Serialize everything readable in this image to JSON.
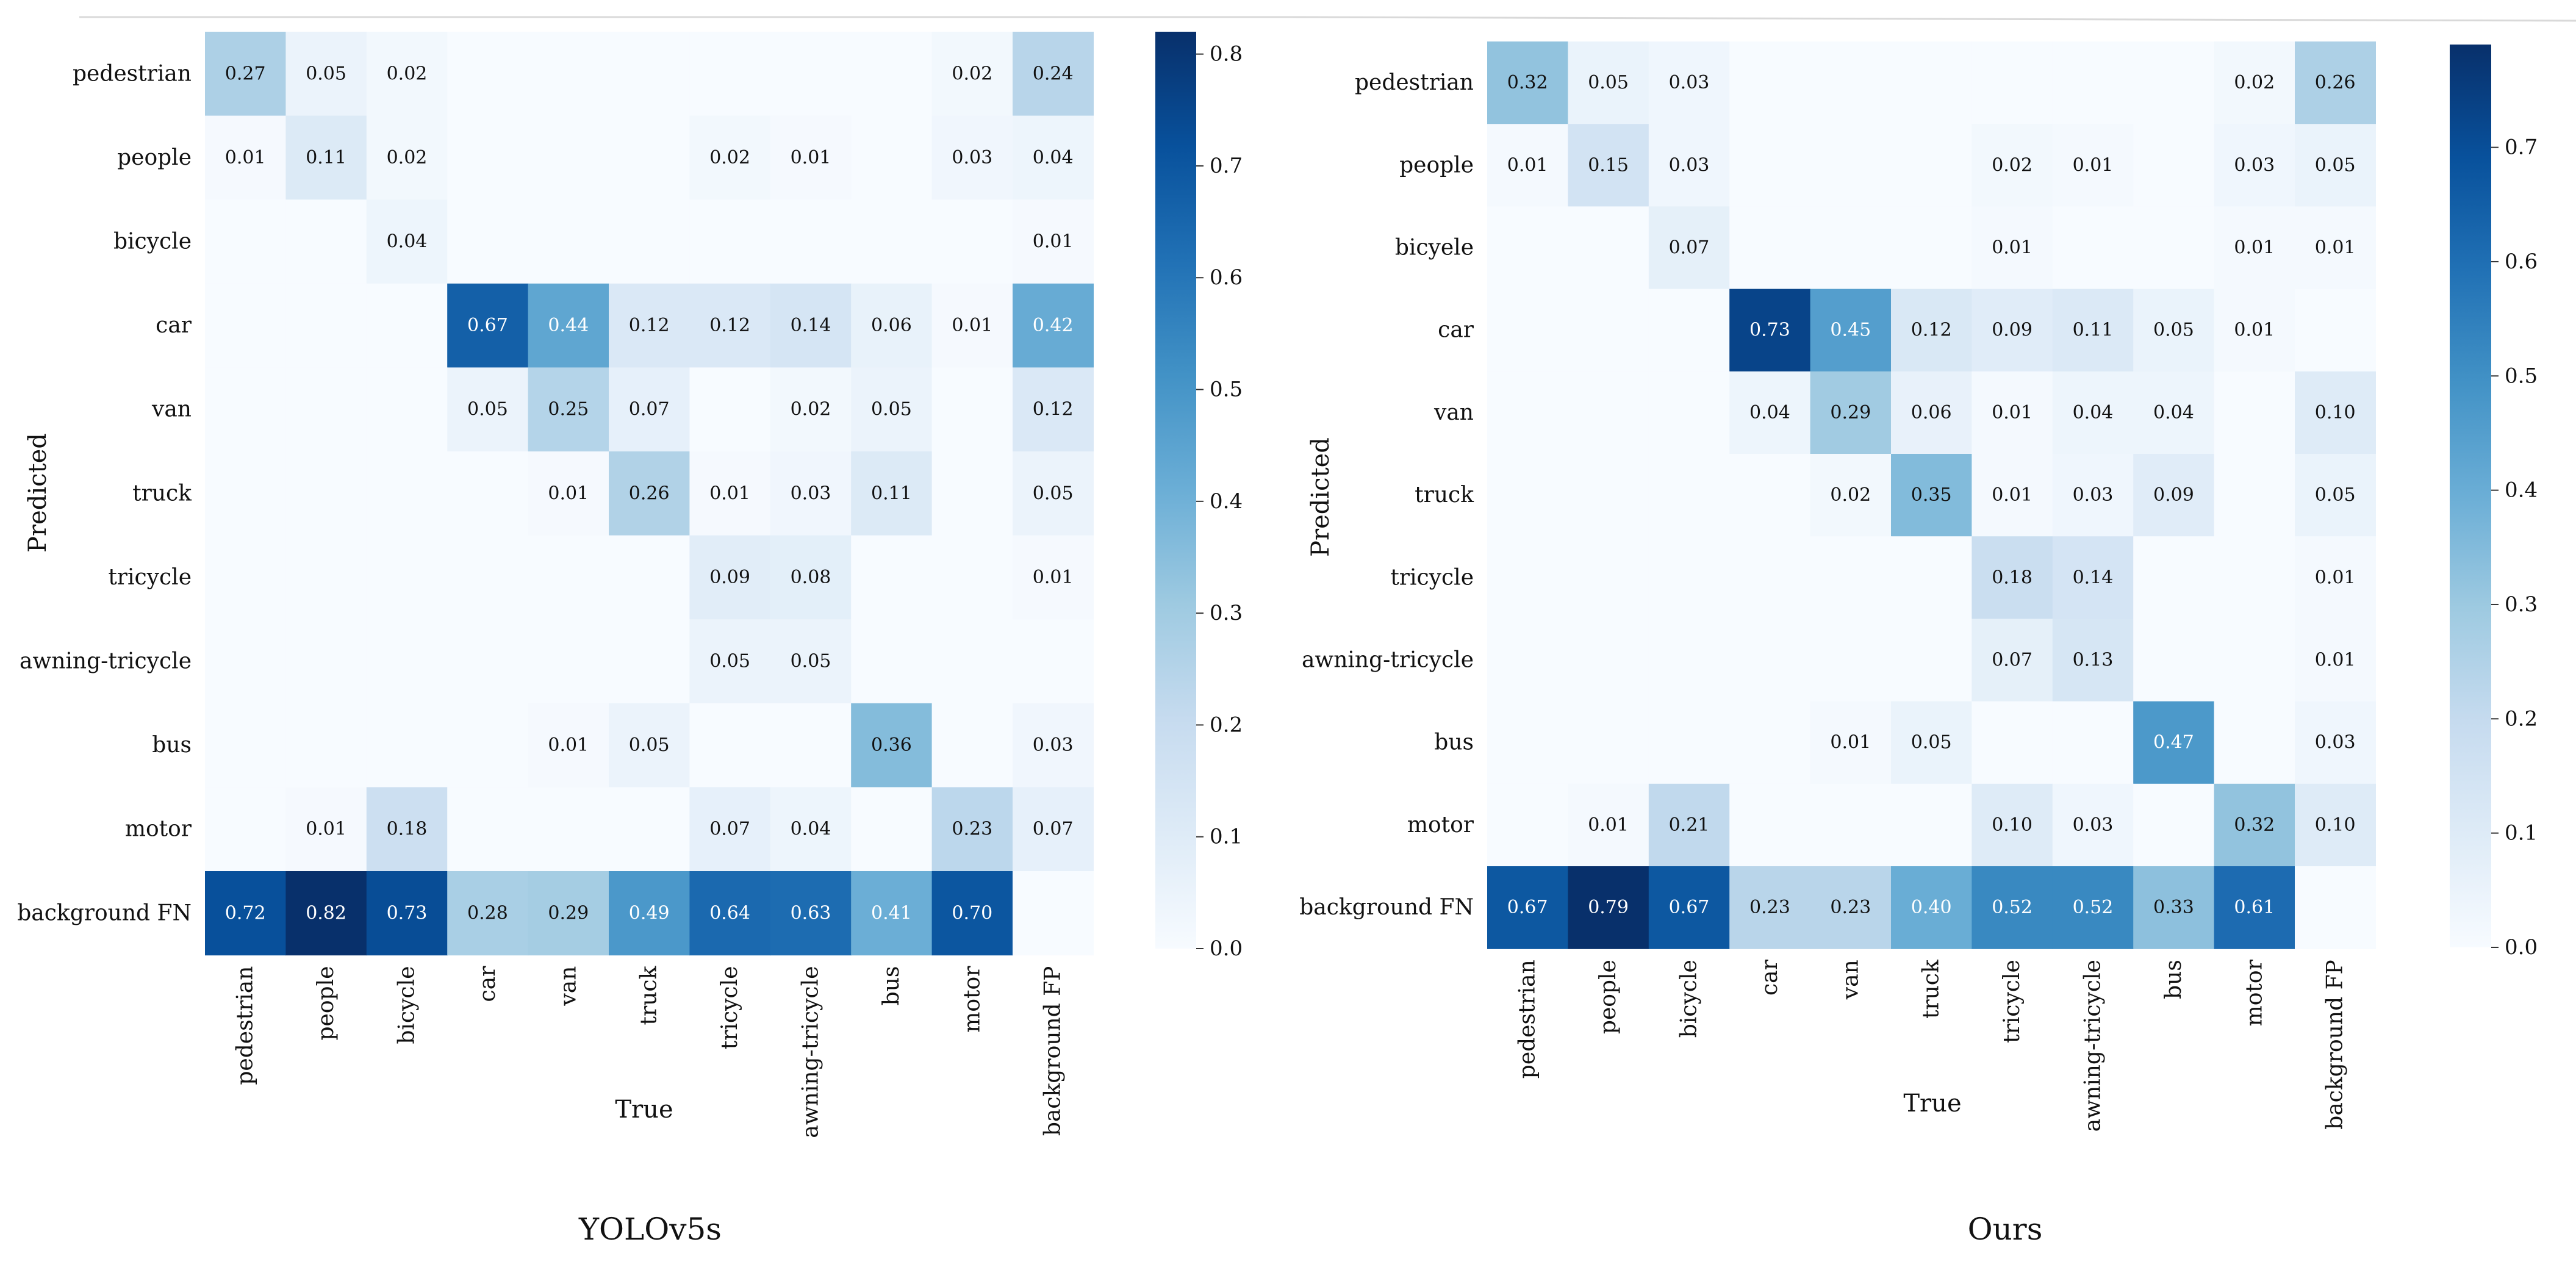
{
  "chart_data": [
    {
      "type": "heatmap",
      "title": "YOLOv5s",
      "xlabel": "True",
      "ylabel": "Predicted",
      "x_labels": [
        "pedestrian",
        "people",
        "bicycle",
        "car",
        "van",
        "truck",
        "tricycle",
        "awning-tricycle",
        "bus",
        "motor",
        "background FP"
      ],
      "y_labels": [
        "pedestrian",
        "people",
        "bicycle",
        "car",
        "van",
        "truck",
        "tricycle",
        "awning-tricycle",
        "bus",
        "motor",
        "background FN"
      ],
      "values": [
        [
          0.27,
          0.05,
          0.02,
          null,
          null,
          null,
          null,
          null,
          null,
          0.02,
          0.24
        ],
        [
          0.01,
          0.11,
          0.02,
          null,
          null,
          null,
          0.02,
          0.01,
          null,
          0.03,
          0.04
        ],
        [
          null,
          null,
          0.04,
          null,
          null,
          null,
          null,
          null,
          null,
          null,
          0.01
        ],
        [
          null,
          null,
          null,
          0.67,
          0.44,
          0.12,
          0.12,
          0.14,
          0.06,
          0.01,
          0.42
        ],
        [
          null,
          null,
          null,
          0.05,
          0.25,
          0.07,
          null,
          0.02,
          0.05,
          null,
          0.12
        ],
        [
          null,
          null,
          null,
          null,
          0.01,
          0.26,
          0.01,
          0.03,
          0.11,
          null,
          0.05
        ],
        [
          null,
          null,
          null,
          null,
          null,
          null,
          0.09,
          0.08,
          null,
          null,
          0.01
        ],
        [
          null,
          null,
          null,
          null,
          null,
          null,
          0.05,
          0.05,
          null,
          null,
          null
        ],
        [
          null,
          null,
          null,
          null,
          0.01,
          0.05,
          null,
          null,
          0.36,
          null,
          0.03
        ],
        [
          null,
          0.01,
          0.18,
          null,
          null,
          null,
          0.07,
          0.04,
          null,
          0.23,
          0.07
        ],
        [
          0.72,
          0.82,
          0.73,
          0.28,
          0.29,
          0.49,
          0.64,
          0.63,
          0.41,
          0.7,
          null
        ]
      ],
      "colorbar": {
        "min": 0.0,
        "max": 0.82,
        "ticks": [
          "0.0",
          "0.1",
          "0.2",
          "0.3",
          "0.4",
          "0.5",
          "0.6",
          "0.7",
          "0.8"
        ]
      }
    },
    {
      "type": "heatmap",
      "title": "Ours",
      "xlabel": "True",
      "ylabel": "Predicted",
      "x_labels": [
        "pedestrian",
        "people",
        "bicycle",
        "car",
        "van",
        "truck",
        "tricycle",
        "awning-tricycle",
        "bus",
        "motor",
        "background FP"
      ],
      "y_labels": [
        "pedestrian",
        "people",
        "bicyele",
        "car",
        "van",
        "truck",
        "tricycle",
        "awning-tricycle",
        "bus",
        "motor",
        "background FN"
      ],
      "values": [
        [
          0.32,
          0.05,
          0.03,
          null,
          null,
          null,
          null,
          null,
          null,
          0.02,
          0.26
        ],
        [
          0.01,
          0.15,
          0.03,
          null,
          null,
          null,
          0.02,
          0.01,
          null,
          0.03,
          0.05
        ],
        [
          null,
          null,
          0.07,
          null,
          null,
          null,
          0.01,
          null,
          null,
          0.01,
          0.01
        ],
        [
          null,
          null,
          null,
          0.73,
          0.45,
          0.12,
          0.09,
          0.11,
          0.05,
          0.01,
          null
        ],
        [
          null,
          null,
          null,
          0.04,
          0.29,
          0.06,
          0.01,
          0.04,
          0.04,
          null,
          0.1
        ],
        [
          null,
          null,
          null,
          null,
          0.02,
          0.35,
          0.01,
          0.03,
          0.09,
          null,
          0.05
        ],
        [
          null,
          null,
          null,
          null,
          null,
          null,
          0.18,
          0.14,
          null,
          null,
          0.01
        ],
        [
          null,
          null,
          null,
          null,
          null,
          null,
          0.07,
          0.13,
          null,
          null,
          0.01
        ],
        [
          null,
          null,
          null,
          null,
          0.01,
          0.05,
          null,
          null,
          0.47,
          null,
          0.03
        ],
        [
          null,
          0.01,
          0.21,
          null,
          null,
          null,
          0.1,
          0.03,
          null,
          0.32,
          0.1
        ],
        [
          0.67,
          0.79,
          0.67,
          0.23,
          0.23,
          0.4,
          0.52,
          0.52,
          0.33,
          0.61,
          null
        ]
      ],
      "colorbar": {
        "min": 0.0,
        "max": 0.79,
        "ticks": [
          "0.0",
          "0.1",
          "0.2",
          "0.3",
          "0.4",
          "0.5",
          "0.6",
          "0.7"
        ]
      }
    }
  ],
  "colors": {
    "scale_low": "#f7fbff",
    "scale_mid": "#6baed6",
    "scale_high": "#08306b",
    "text_dark": "#111111",
    "text_light": "#ffffff"
  }
}
